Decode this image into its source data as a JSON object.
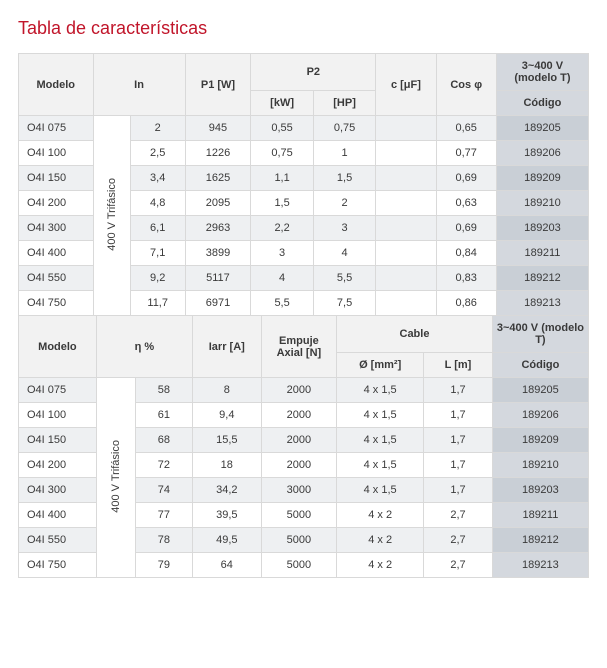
{
  "title": "Tabla de características",
  "rot_label": "400 V Trifásico",
  "t1": {
    "h": {
      "modelo": "Modelo",
      "in": "In",
      "p1": "P1 [W]",
      "p2": "P2",
      "p2kw": "[kW]",
      "p2hp": "[HP]",
      "c": "c [μF]",
      "cos": "Cos φ",
      "volt": "3~400 V (modelo T)",
      "codigo": "Código"
    },
    "rows": [
      {
        "m": "O4I 075",
        "in": "2",
        "p1": "945",
        "kw": "0,55",
        "hp": "0,75",
        "c": "",
        "cos": "0,65",
        "cod": "189205"
      },
      {
        "m": "O4I 100",
        "in": "2,5",
        "p1": "1226",
        "kw": "0,75",
        "hp": "1",
        "c": "",
        "cos": "0,77",
        "cod": "189206"
      },
      {
        "m": "O4I 150",
        "in": "3,4",
        "p1": "1625",
        "kw": "1,1",
        "hp": "1,5",
        "c": "",
        "cos": "0,69",
        "cod": "189209"
      },
      {
        "m": "O4I 200",
        "in": "4,8",
        "p1": "2095",
        "kw": "1,5",
        "hp": "2",
        "c": "",
        "cos": "0,63",
        "cod": "189210"
      },
      {
        "m": "O4I 300",
        "in": "6,1",
        "p1": "2963",
        "kw": "2,2",
        "hp": "3",
        "c": "",
        "cos": "0,69",
        "cod": "189203"
      },
      {
        "m": "O4I 400",
        "in": "7,1",
        "p1": "3899",
        "kw": "3",
        "hp": "4",
        "c": "",
        "cos": "0,84",
        "cod": "189211"
      },
      {
        "m": "O4I 550",
        "in": "9,2",
        "p1": "5117",
        "kw": "4",
        "hp": "5,5",
        "c": "",
        "cos": "0,83",
        "cod": "189212"
      },
      {
        "m": "O4I 750",
        "in": "11,7",
        "p1": "6971",
        "kw": "5,5",
        "hp": "7,5",
        "c": "",
        "cos": "0,86",
        "cod": "189213"
      }
    ]
  },
  "t2": {
    "h": {
      "modelo": "Modelo",
      "eta": "η %",
      "iarr": "Iarr [A]",
      "empuje": "Empuje Axial [N]",
      "cable": "Cable",
      "omm": "Ø [mm²]",
      "lm": "L [m]",
      "volt": "3~400 V (modelo T)",
      "codigo": "Código"
    },
    "rows": [
      {
        "m": "O4I 075",
        "eta": "58",
        "ia": "8",
        "emp": "2000",
        "omm": "4 x 1,5",
        "lm": "1,7",
        "cod": "189205"
      },
      {
        "m": "O4I 100",
        "eta": "61",
        "ia": "9,4",
        "emp": "2000",
        "omm": "4 x 1,5",
        "lm": "1,7",
        "cod": "189206"
      },
      {
        "m": "O4I 150",
        "eta": "68",
        "ia": "15,5",
        "emp": "2000",
        "omm": "4 x 1,5",
        "lm": "1,7",
        "cod": "189209"
      },
      {
        "m": "O4I 200",
        "eta": "72",
        "ia": "18",
        "emp": "2000",
        "omm": "4 x 1,5",
        "lm": "1,7",
        "cod": "189210"
      },
      {
        "m": "O4I 300",
        "eta": "74",
        "ia": "34,2",
        "emp": "3000",
        "omm": "4 x 1,5",
        "lm": "1,7",
        "cod": "189203"
      },
      {
        "m": "O4I 400",
        "eta": "77",
        "ia": "39,5",
        "emp": "5000",
        "omm": "4 x 2",
        "lm": "2,7",
        "cod": "189211"
      },
      {
        "m": "O4I 550",
        "eta": "78",
        "ia": "49,5",
        "emp": "5000",
        "omm": "4 x 2",
        "lm": "2,7",
        "cod": "189212"
      },
      {
        "m": "O4I 750",
        "eta": "79",
        "ia": "64",
        "emp": "5000",
        "omm": "4 x 2",
        "lm": "2,7",
        "cod": "189213"
      }
    ]
  }
}
